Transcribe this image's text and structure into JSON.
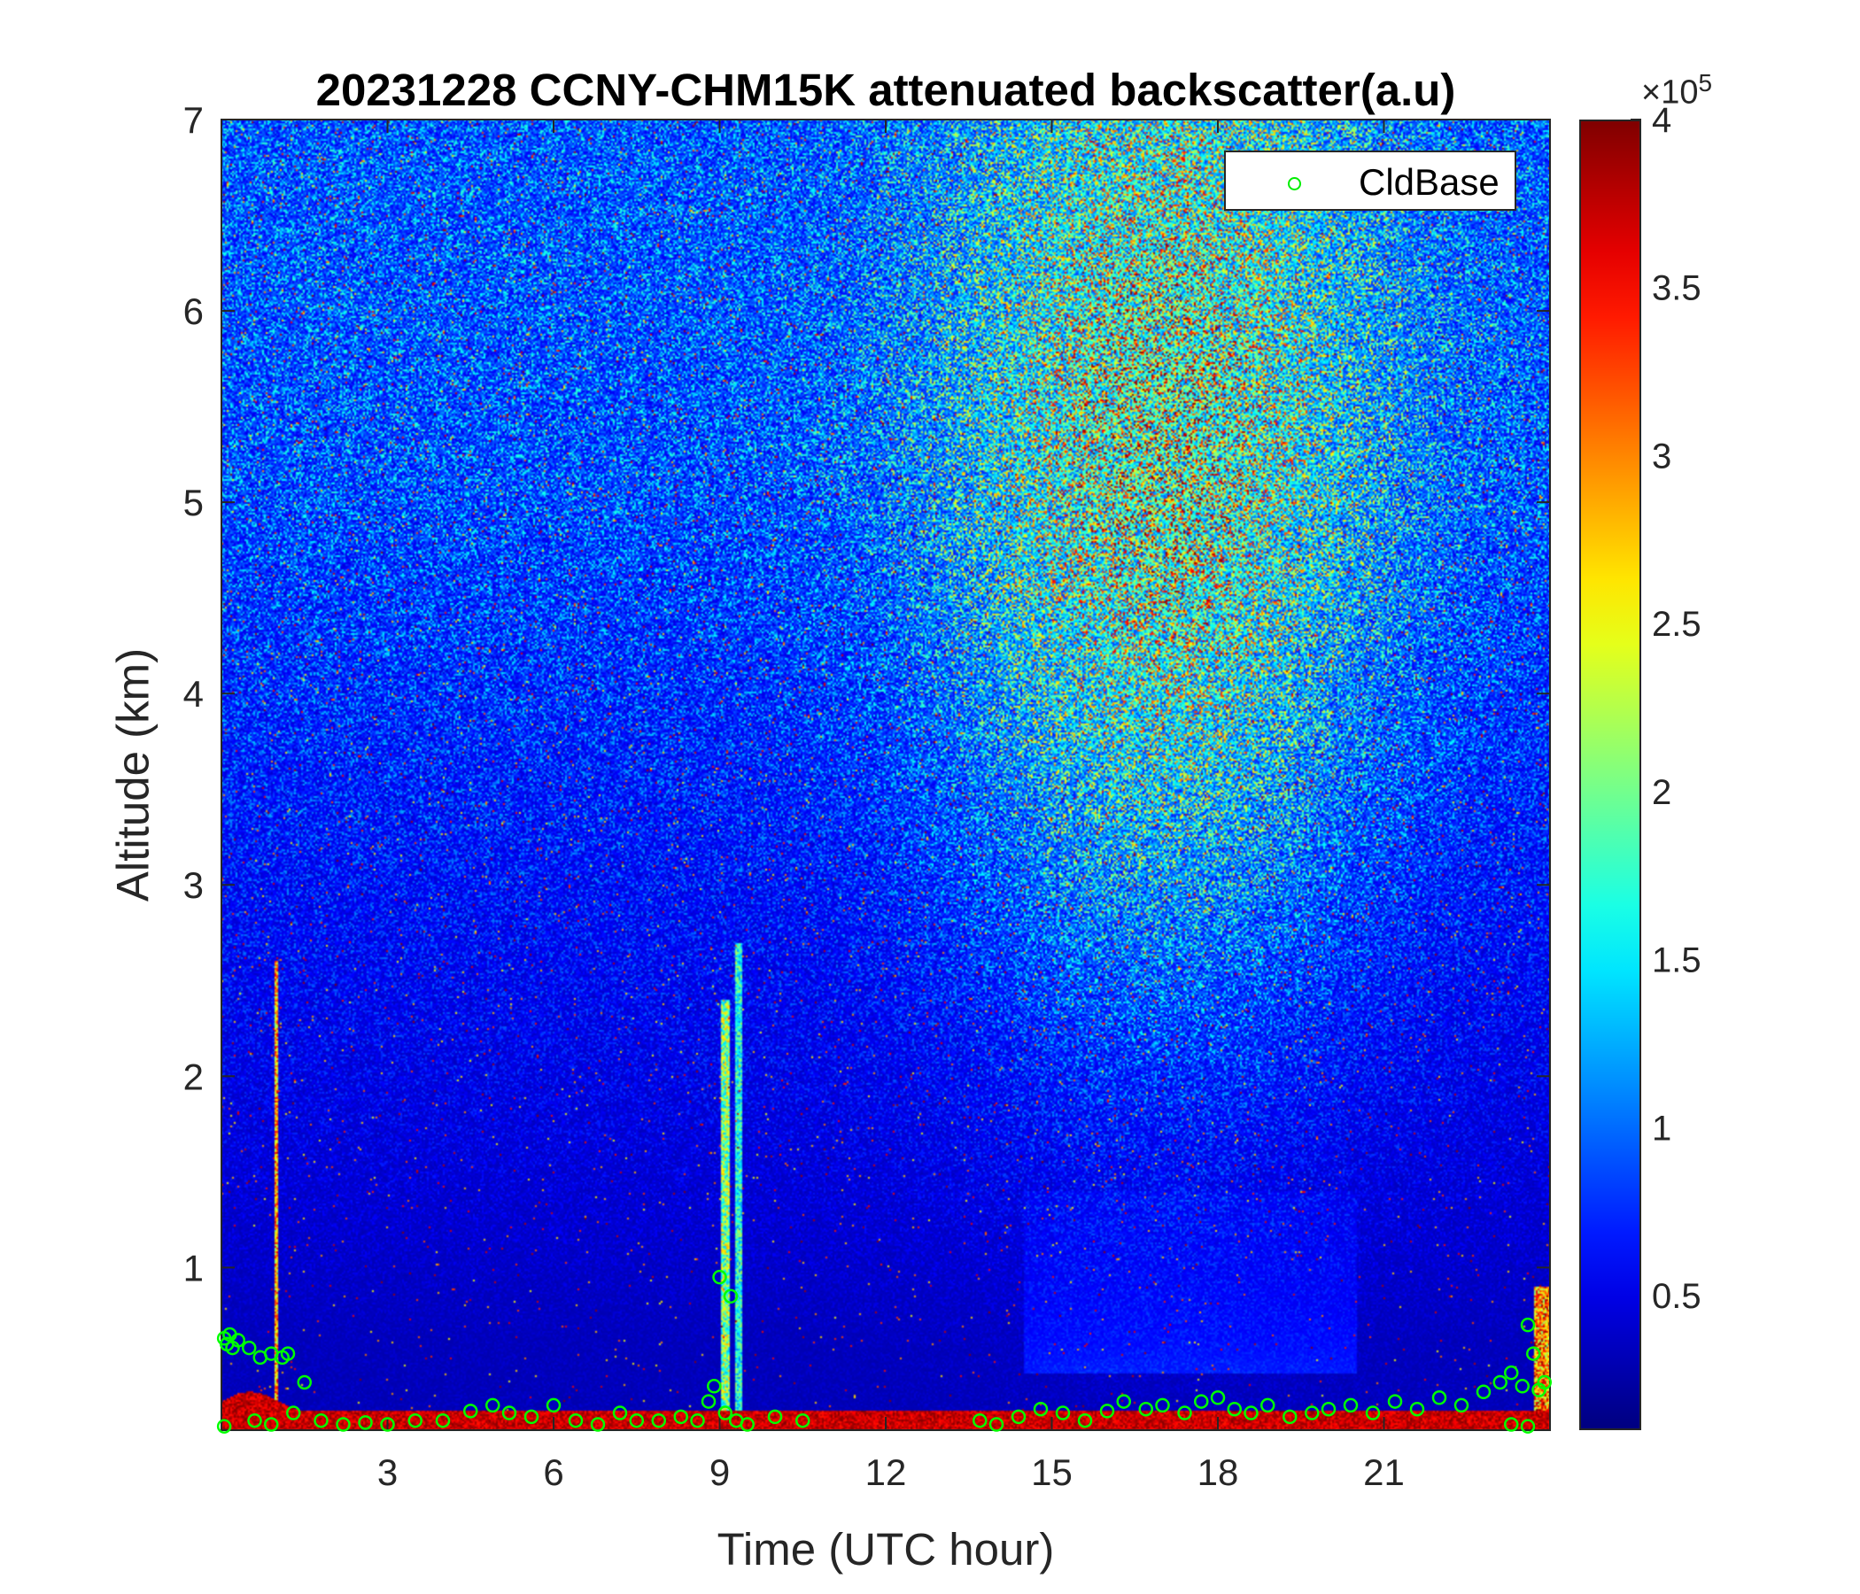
{
  "chart_data": {
    "type": "heatmap",
    "title": "20231228 CCNY-CHM15K attenuated backscatter(a.u)",
    "xlabel": "Time (UTC hour)",
    "ylabel": "Altitude (km)",
    "xlim": [
      0,
      24
    ],
    "ylim": [
      0.15,
      7
    ],
    "xticks": [
      3,
      6,
      9,
      12,
      15,
      18,
      21
    ],
    "yticks": [
      1,
      2,
      3,
      4,
      5,
      6,
      7
    ],
    "colorbar": {
      "colormap": "jet",
      "range": [
        10000,
        400000
      ],
      "exponent_label": "×10",
      "exponent": "5",
      "ticks": [
        0.5,
        1,
        1.5,
        2,
        2.5,
        3,
        3.5,
        4
      ]
    },
    "legend": {
      "location": "top-right",
      "entries": [
        "CldBase"
      ]
    },
    "series": [
      {
        "name": "CldBase",
        "marker": "circle",
        "color": "#00ff00",
        "points": [
          [
            0.05,
            0.63
          ],
          [
            0.1,
            0.6
          ],
          [
            0.15,
            0.65
          ],
          [
            0.2,
            0.58
          ],
          [
            0.3,
            0.62
          ],
          [
            0.5,
            0.58
          ],
          [
            0.7,
            0.53
          ],
          [
            0.9,
            0.55
          ],
          [
            1.1,
            0.53
          ],
          [
            1.2,
            0.55
          ],
          [
            0.05,
            0.17
          ],
          [
            0.6,
            0.2
          ],
          [
            0.9,
            0.18
          ],
          [
            1.3,
            0.24
          ],
          [
            1.5,
            0.4
          ],
          [
            1.8,
            0.2
          ],
          [
            2.2,
            0.18
          ],
          [
            2.6,
            0.19
          ],
          [
            3.0,
            0.18
          ],
          [
            3.5,
            0.2
          ],
          [
            4.0,
            0.2
          ],
          [
            4.5,
            0.25
          ],
          [
            4.9,
            0.28
          ],
          [
            5.2,
            0.24
          ],
          [
            5.6,
            0.22
          ],
          [
            6.0,
            0.28
          ],
          [
            6.4,
            0.2
          ],
          [
            6.8,
            0.18
          ],
          [
            7.2,
            0.24
          ],
          [
            7.5,
            0.2
          ],
          [
            7.9,
            0.2
          ],
          [
            8.3,
            0.22
          ],
          [
            8.6,
            0.2
          ],
          [
            8.8,
            0.3
          ],
          [
            8.9,
            0.38
          ],
          [
            9.0,
            0.95
          ],
          [
            9.1,
            0.24
          ],
          [
            9.2,
            0.85
          ],
          [
            9.3,
            0.2
          ],
          [
            9.5,
            0.18
          ],
          [
            10.0,
            0.22
          ],
          [
            10.5,
            0.2
          ],
          [
            13.7,
            0.2
          ],
          [
            14.0,
            0.18
          ],
          [
            14.4,
            0.22
          ],
          [
            14.8,
            0.26
          ],
          [
            15.2,
            0.24
          ],
          [
            15.6,
            0.2
          ],
          [
            16.0,
            0.25
          ],
          [
            16.3,
            0.3
          ],
          [
            16.7,
            0.26
          ],
          [
            17.0,
            0.28
          ],
          [
            17.4,
            0.24
          ],
          [
            17.7,
            0.3
          ],
          [
            18.0,
            0.32
          ],
          [
            18.3,
            0.26
          ],
          [
            18.6,
            0.24
          ],
          [
            18.9,
            0.28
          ],
          [
            19.3,
            0.22
          ],
          [
            19.7,
            0.24
          ],
          [
            20.0,
            0.26
          ],
          [
            20.4,
            0.28
          ],
          [
            20.8,
            0.24
          ],
          [
            21.2,
            0.3
          ],
          [
            21.6,
            0.26
          ],
          [
            22.0,
            0.32
          ],
          [
            22.4,
            0.28
          ],
          [
            22.8,
            0.35
          ],
          [
            23.1,
            0.4
          ],
          [
            23.3,
            0.45
          ],
          [
            23.5,
            0.38
          ],
          [
            23.6,
            0.7
          ],
          [
            23.7,
            0.55
          ],
          [
            23.8,
            0.36
          ],
          [
            23.9,
            0.4
          ],
          [
            23.3,
            0.18
          ],
          [
            23.6,
            0.17
          ]
        ]
      }
    ]
  }
}
